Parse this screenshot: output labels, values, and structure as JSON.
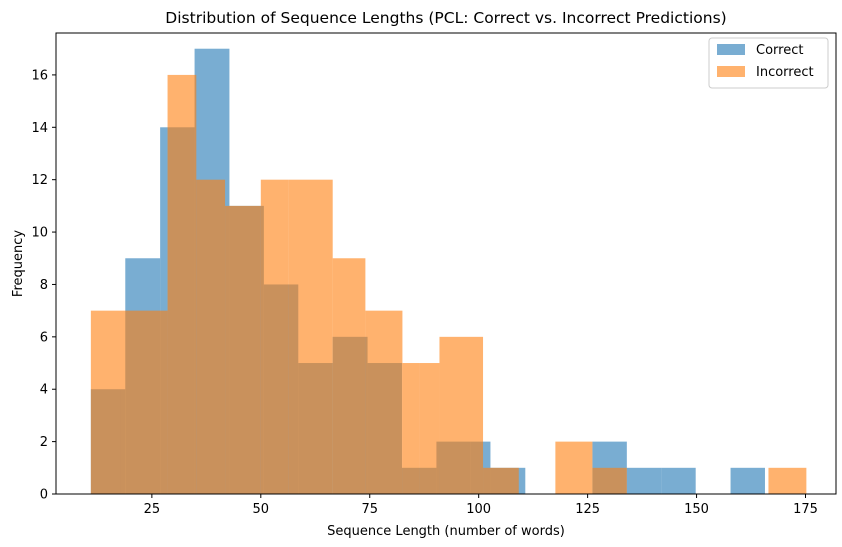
{
  "chart_data": {
    "type": "bar",
    "title": "Distribution of Sequence Lengths (PCL: Correct vs. Incorrect Predictions)",
    "xlabel": "Sequence Length (number of words)",
    "ylabel": "Frequency",
    "xlim": [
      3,
      182
    ],
    "ylim": [
      0,
      17.6
    ],
    "xticks": [
      25,
      50,
      75,
      100,
      125,
      150,
      175
    ],
    "yticks": [
      0,
      2,
      4,
      6,
      8,
      10,
      12,
      14,
      16
    ],
    "legend_position": "top-right",
    "series": [
      {
        "name": "Correct",
        "color": "#1f77b4",
        "opacity": 0.6,
        "bins": [
          {
            "x0": 11.0,
            "x1": 18.9,
            "count": 4
          },
          {
            "x0": 18.9,
            "x1": 26.9,
            "count": 9
          },
          {
            "x0": 26.9,
            "x1": 28.6,
            "count": 14
          },
          {
            "x0": 28.6,
            "x1": 34.8,
            "count": 14
          },
          {
            "x0": 34.8,
            "x1": 42.8,
            "count": 17
          },
          {
            "x0": 42.8,
            "x1": 50.7,
            "count": 11
          },
          {
            "x0": 50.7,
            "x1": 58.6,
            "count": 8
          },
          {
            "x0": 58.6,
            "x1": 66.5,
            "count": 5
          },
          {
            "x0": 66.5,
            "x1": 74.5,
            "count": 6
          },
          {
            "x0": 74.5,
            "x1": 82.4,
            "count": 5
          },
          {
            "x0": 82.4,
            "x1": 90.3,
            "count": 1
          },
          {
            "x0": 90.3,
            "x1": 98.2,
            "count": 2
          },
          {
            "x0": 98.2,
            "x1": 102.7,
            "count": 2
          },
          {
            "x0": 102.7,
            "x1": 110.7,
            "count": 1
          },
          {
            "x0": 126.1,
            "x1": 134.0,
            "count": 2
          },
          {
            "x0": 134.0,
            "x1": 141.9,
            "count": 1
          },
          {
            "x0": 141.9,
            "x1": 149.8,
            "count": 1
          },
          {
            "x0": 157.8,
            "x1": 165.7,
            "count": 1
          }
        ]
      },
      {
        "name": "Incorrect",
        "color": "#ff7f0e",
        "opacity": 0.6,
        "bins": [
          {
            "x0": 11.0,
            "x1": 17.8,
            "count": 7
          },
          {
            "x0": 17.8,
            "x1": 28.6,
            "count": 7
          },
          {
            "x0": 28.6,
            "x1": 35.2,
            "count": 16
          },
          {
            "x0": 35.2,
            "x1": 41.8,
            "count": 12
          },
          {
            "x0": 41.8,
            "x1": 50.0,
            "count": 11
          },
          {
            "x0": 50.0,
            "x1": 56.4,
            "count": 12
          },
          {
            "x0": 56.4,
            "x1": 66.5,
            "count": 12
          },
          {
            "x0": 66.5,
            "x1": 74.0,
            "count": 9
          },
          {
            "x0": 74.0,
            "x1": 82.5,
            "count": 7
          },
          {
            "x0": 82.5,
            "x1": 86.4,
            "count": 5
          },
          {
            "x0": 86.4,
            "x1": 91.0,
            "count": 5
          },
          {
            "x0": 91.0,
            "x1": 101.0,
            "count": 6
          },
          {
            "x0": 101.0,
            "x1": 109.2,
            "count": 1
          },
          {
            "x0": 117.6,
            "x1": 126.1,
            "count": 2
          },
          {
            "x0": 126.1,
            "x1": 134.0,
            "count": 1
          },
          {
            "x0": 166.5,
            "x1": 175.2,
            "count": 1
          }
        ]
      }
    ]
  }
}
